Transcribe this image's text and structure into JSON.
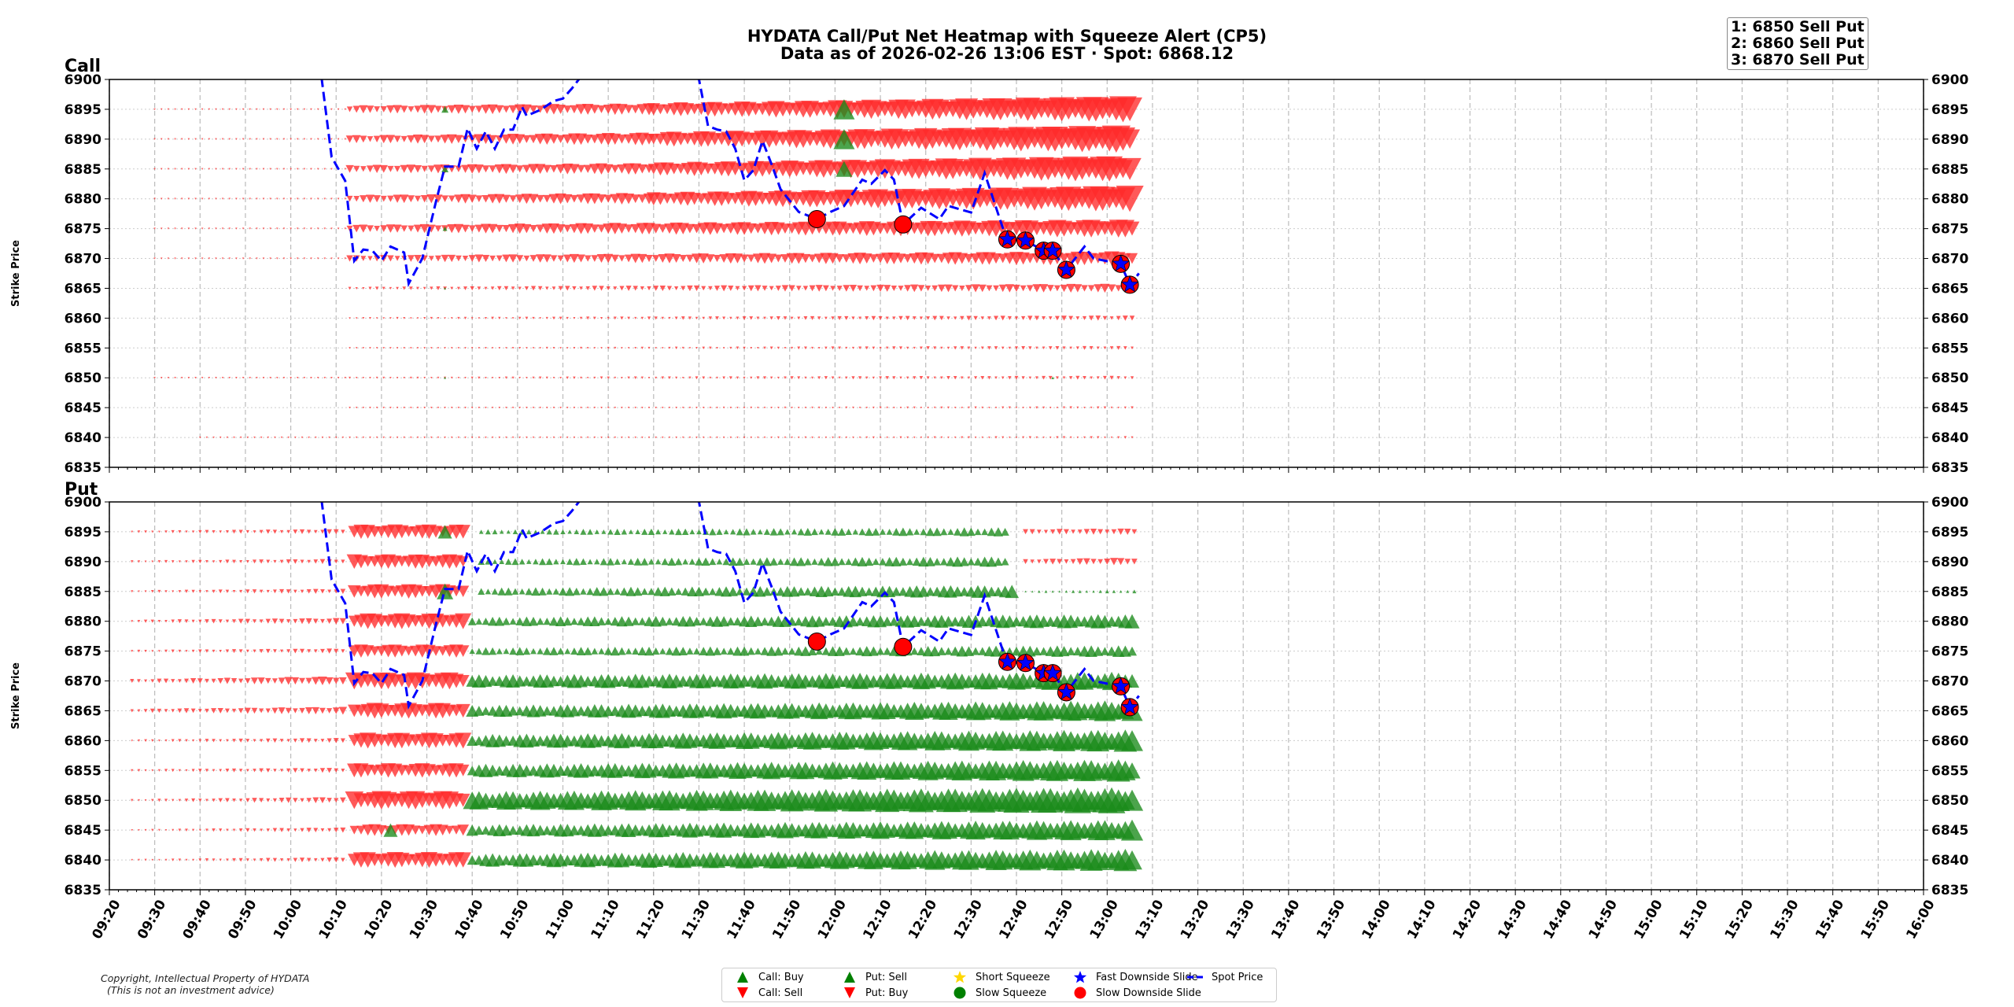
{
  "title": "HYDATA Call/Put Net Heatmap with Squeeze Alert (CP5)",
  "subtitle": "Data as of 2026-02-26 13:06 EST · Spot: 6868.12",
  "alerts_box": [
    "1: 6850 Sell Put",
    "2: 6860 Sell Put",
    "3: 6870 Sell Put"
  ],
  "copyright": [
    "Copyright, Intellectual Property of HYDATA",
    "(This is not an investment advice)"
  ],
  "colors": {
    "buy": "#1a8a1a",
    "sell": "#ff2a2a",
    "spot": "#0000ff",
    "short_squeeze": "#ffd700",
    "slow_squeeze": "#008000",
    "fast_slide": "#0000ff",
    "slow_slide": "#ff0000"
  },
  "legend": [
    {
      "label": "Call: Buy",
      "icon": "triangle-up",
      "color": "#008000"
    },
    {
      "label": "Call: Sell",
      "icon": "triangle-down",
      "color": "#ff0000"
    },
    {
      "label": "Put: Sell",
      "icon": "triangle-up",
      "color": "#008000"
    },
    {
      "label": "Put: Buy",
      "icon": "triangle-down",
      "color": "#ff0000"
    },
    {
      "label": "Short Squeeze",
      "icon": "star",
      "color": "#ffd700"
    },
    {
      "label": "Slow Squeeze",
      "icon": "circle",
      "color": "#008000"
    },
    {
      "label": "Fast Downside Slide",
      "icon": "star",
      "color": "#0000ff"
    },
    {
      "label": "Slow Downside Slide",
      "icon": "circle",
      "color": "#ff0000"
    },
    {
      "label": "Spot Price",
      "icon": "dashed-line",
      "color": "#0000ff"
    }
  ],
  "chart_data": {
    "type": "scatter",
    "ylabel": "Strike Price",
    "ylim": [
      6835,
      6900
    ],
    "xlim": [
      "09:20",
      "16:00"
    ],
    "yticks": [
      6900,
      6895,
      6890,
      6885,
      6880,
      6875,
      6870,
      6865,
      6860,
      6855,
      6850,
      6845,
      6840,
      6835
    ],
    "xticks": [
      "09:20",
      "09:30",
      "09:40",
      "09:50",
      "10:00",
      "10:10",
      "10:20",
      "10:30",
      "10:40",
      "10:50",
      "11:00",
      "11:10",
      "11:20",
      "11:30",
      "11:40",
      "11:50",
      "12:00",
      "12:10",
      "12:20",
      "12:30",
      "12:40",
      "12:50",
      "13:00",
      "13:10",
      "13:20",
      "13:30",
      "13:40",
      "13:50",
      "14:00",
      "14:10",
      "14:20",
      "14:30",
      "14:40",
      "14:50",
      "15:00",
      "15:10",
      "15:20",
      "15:30",
      "15:40",
      "15:50",
      "16:00"
    ],
    "grid": true,
    "legend_placement": "bottom-center",
    "panels": [
      {
        "name": "Call",
        "rows": [
          {
            "strike": 6895,
            "segments": [
              [
                "09:30",
                "10:12",
                "sell",
                0.04,
                0.06
              ],
              [
                "10:13",
                "11:20",
                "sell",
                0.3,
                0.45
              ],
              [
                "11:20",
                "13:06",
                "sell",
                0.5,
                1.0
              ]
            ]
          },
          {
            "strike": 6890,
            "segments": [
              [
                "09:30",
                "10:12",
                "sell",
                0.04,
                0.06
              ],
              [
                "10:13",
                "11:20",
                "sell",
                0.3,
                0.5
              ],
              [
                "11:20",
                "13:06",
                "sell",
                0.55,
                1.05
              ]
            ]
          },
          {
            "strike": 6885,
            "segments": [
              [
                "09:30",
                "10:12",
                "sell",
                0.04,
                0.06
              ],
              [
                "10:13",
                "11:20",
                "sell",
                0.3,
                0.45
              ],
              [
                "11:20",
                "13:06",
                "sell",
                0.5,
                1.0
              ]
            ]
          },
          {
            "strike": 6880,
            "segments": [
              [
                "09:30",
                "10:12",
                "sell",
                0.04,
                0.06
              ],
              [
                "10:13",
                "11:20",
                "sell",
                0.3,
                0.45
              ],
              [
                "11:20",
                "13:06",
                "sell",
                0.5,
                1.0
              ]
            ]
          },
          {
            "strike": 6875,
            "segments": [
              [
                "09:30",
                "10:12",
                "sell",
                0.04,
                0.05
              ],
              [
                "10:13",
                "13:06",
                "sell",
                0.3,
                0.7
              ]
            ]
          },
          {
            "strike": 6870,
            "segments": [
              [
                "09:30",
                "10:12",
                "sell",
                0.03,
                0.04
              ],
              [
                "10:13",
                "13:06",
                "sell",
                0.25,
                0.55
              ]
            ]
          },
          {
            "strike": 6865,
            "segments": [
              [
                "10:13",
                "13:06",
                "sell",
                0.12,
                0.35
              ]
            ]
          },
          {
            "strike": 6860,
            "segments": [
              [
                "10:13",
                "13:06",
                "sell",
                0.08,
                0.2
              ]
            ]
          },
          {
            "strike": 6855,
            "segments": [
              [
                "10:13",
                "13:06",
                "sell",
                0.06,
                0.15
              ]
            ]
          },
          {
            "strike": 6850,
            "segments": [
              [
                "09:30",
                "10:12",
                "sell",
                0.03,
                0.04
              ],
              [
                "10:13",
                "13:06",
                "sell",
                0.08,
                0.15
              ]
            ]
          },
          {
            "strike": 6845,
            "segments": [
              [
                "10:13",
                "13:06",
                "sell",
                0.05,
                0.1
              ]
            ]
          },
          {
            "strike": 6840,
            "segments": [
              [
                "09:40",
                "10:12",
                "sell",
                0.03,
                0.04
              ],
              [
                "10:13",
                "13:06",
                "sell",
                0.05,
                0.1
              ]
            ]
          }
        ],
        "points": [
          [
            "10:34",
            6895,
            "buy",
            0.3
          ],
          [
            "10:34",
            6885,
            "buy",
            0.3
          ],
          [
            "10:34",
            6875,
            "buy",
            0.2
          ],
          [
            "10:34",
            6865,
            "buy",
            0.1
          ],
          [
            "10:34",
            6850,
            "buy",
            0.1
          ],
          [
            "12:02",
            6895,
            "buy",
            0.9
          ],
          [
            "12:02",
            6890,
            "buy",
            0.9
          ],
          [
            "12:02",
            6885,
            "buy",
            0.7
          ],
          [
            "12:48",
            6850,
            "buy",
            0.12
          ]
        ]
      },
      {
        "name": "Put",
        "rows": [
          {
            "strike": 6895,
            "segments": [
              [
                "09:25",
                "10:12",
                "buy",
                0.1,
                0.2
              ],
              [
                "10:14",
                "10:38",
                "buy",
                0.55,
                0.55
              ],
              [
                "10:42",
                "12:38",
                "sell",
                0.2,
                0.35
              ],
              [
                "12:42",
                "13:06",
                "buy",
                0.2,
                0.25
              ]
            ]
          },
          {
            "strike": 6890,
            "segments": [
              [
                "09:25",
                "10:12",
                "buy",
                0.1,
                0.2
              ],
              [
                "10:14",
                "10:38",
                "buy",
                0.55,
                0.55
              ],
              [
                "10:42",
                "12:38",
                "sell",
                0.25,
                0.4
              ],
              [
                "12:42",
                "13:06",
                "buy",
                0.2,
                0.3
              ]
            ]
          },
          {
            "strike": 6885,
            "segments": [
              [
                "09:25",
                "10:12",
                "buy",
                0.1,
                0.2
              ],
              [
                "10:14",
                "10:38",
                "buy",
                0.55,
                0.55
              ],
              [
                "10:42",
                "12:40",
                "sell",
                0.3,
                0.5
              ],
              [
                "12:42",
                "13:06",
                "sell",
                0.1,
                0.15
              ]
            ]
          },
          {
            "strike": 6880,
            "segments": [
              [
                "09:25",
                "10:12",
                "buy",
                0.12,
                0.25
              ],
              [
                "10:14",
                "10:38",
                "buy",
                0.6,
                0.6
              ],
              [
                "10:40",
                "13:06",
                "sell",
                0.35,
                0.55
              ]
            ]
          },
          {
            "strike": 6875,
            "segments": [
              [
                "09:25",
                "10:12",
                "buy",
                0.1,
                0.2
              ],
              [
                "10:14",
                "10:38",
                "buy",
                0.5,
                0.5
              ],
              [
                "10:40",
                "13:06",
                "sell",
                0.3,
                0.45
              ]
            ]
          },
          {
            "strike": 6870,
            "segments": [
              [
                "09:25",
                "10:12",
                "buy",
                0.15,
                0.35
              ],
              [
                "10:14",
                "10:38",
                "buy",
                0.65,
                0.65
              ],
              [
                "10:40",
                "13:06",
                "sell",
                0.5,
                0.7
              ]
            ]
          },
          {
            "strike": 6865,
            "segments": [
              [
                "09:25",
                "10:12",
                "buy",
                0.15,
                0.3
              ],
              [
                "10:14",
                "10:38",
                "buy",
                0.6,
                0.6
              ],
              [
                "10:40",
                "13:06",
                "sell",
                0.45,
                0.8
              ]
            ]
          },
          {
            "strike": 6860,
            "segments": [
              [
                "09:25",
                "10:12",
                "buy",
                0.1,
                0.2
              ],
              [
                "10:14",
                "10:38",
                "buy",
                0.6,
                0.6
              ],
              [
                "10:40",
                "13:06",
                "sell",
                0.5,
                0.85
              ]
            ]
          },
          {
            "strike": 6855,
            "segments": [
              [
                "09:25",
                "10:12",
                "buy",
                0.1,
                0.2
              ],
              [
                "10:14",
                "10:38",
                "buy",
                0.55,
                0.55
              ],
              [
                "10:40",
                "13:06",
                "sell",
                0.5,
                0.85
              ]
            ]
          },
          {
            "strike": 6850,
            "segments": [
              [
                "09:25",
                "10:12",
                "buy",
                0.1,
                0.25
              ],
              [
                "10:14",
                "10:38",
                "buy",
                0.7,
                0.7
              ],
              [
                "10:40",
                "13:06",
                "sell",
                0.7,
                1.0
              ]
            ]
          },
          {
            "strike": 6845,
            "segments": [
              [
                "09:25",
                "10:12",
                "buy",
                0.08,
                0.2
              ],
              [
                "10:14",
                "10:38",
                "buy",
                0.45,
                0.45
              ],
              [
                "10:40",
                "13:06",
                "sell",
                0.45,
                0.8
              ]
            ]
          },
          {
            "strike": 6840,
            "segments": [
              [
                "09:25",
                "10:12",
                "buy",
                0.08,
                0.2
              ],
              [
                "10:14",
                "10:38",
                "buy",
                0.6,
                0.6
              ],
              [
                "10:40",
                "13:06",
                "sell",
                0.5,
                0.85
              ]
            ]
          }
        ],
        "points": [
          [
            "10:34",
            6895,
            "sell",
            0.6
          ],
          [
            "10:34",
            6885,
            "sell",
            0.7
          ],
          [
            "10:22",
            6845,
            "sell",
            0.6
          ]
        ]
      }
    ],
    "spot_price": [
      [
        "10:06",
        6905
      ],
      [
        "10:09",
        6887
      ],
      [
        "10:12",
        6883
      ],
      [
        "10:14",
        6869.6
      ],
      [
        "10:16",
        6871.5
      ],
      [
        "10:18",
        6871.3
      ],
      [
        "10:20",
        6869.6
      ],
      [
        "10:22",
        6872
      ],
      [
        "10:25",
        6871
      ],
      [
        "10:26",
        6865.8
      ],
      [
        "10:29",
        6870
      ],
      [
        "10:32",
        6879.5
      ],
      [
        "10:34",
        6885.4
      ],
      [
        "10:37",
        6885.4
      ],
      [
        "10:39",
        6891.8
      ],
      [
        "10:41",
        6888.4
      ],
      [
        "10:43",
        6891.3
      ],
      [
        "10:45",
        6888.4
      ],
      [
        "10:47",
        6891.6
      ],
      [
        "10:49",
        6891.6
      ],
      [
        "10:51",
        6895.4
      ],
      [
        "10:52",
        6893.9
      ],
      [
        "10:55",
        6894.9
      ],
      [
        "10:58",
        6896.4
      ],
      [
        "11:00",
        6896.8
      ],
      [
        "11:02",
        6898.5
      ],
      [
        "11:04",
        6900.5
      ],
      [
        "11:15",
        6903
      ],
      [
        "11:26",
        6902
      ],
      [
        "11:30",
        6900
      ],
      [
        "11:32",
        6892.2
      ],
      [
        "11:34",
        6891.6
      ],
      [
        "11:36",
        6891.3
      ],
      [
        "11:38",
        6888.4
      ],
      [
        "11:40",
        6883.1
      ],
      [
        "11:42",
        6884.8
      ],
      [
        "11:44",
        6889.7
      ],
      [
        "11:46",
        6885.8
      ],
      [
        "11:48",
        6881.6
      ],
      [
        "11:52",
        6877.8
      ],
      [
        "11:56",
        6876.6
      ],
      [
        "11:59",
        6877.8
      ],
      [
        "12:02",
        6878.8
      ],
      [
        "12:06",
        6883.2
      ],
      [
        "12:08",
        6882.5
      ],
      [
        "12:11",
        6884.8
      ],
      [
        "12:13",
        6883.2
      ],
      [
        "12:15",
        6875.7
      ],
      [
        "12:19",
        6878.5
      ],
      [
        "12:23",
        6876.6
      ],
      [
        "12:25",
        6878.8
      ],
      [
        "12:30",
        6877.7
      ],
      [
        "12:33",
        6884.3
      ],
      [
        "12:37",
        6875.1
      ],
      [
        "12:38",
        6873.2
      ],
      [
        "12:42",
        6873
      ],
      [
        "12:46",
        6871.3
      ],
      [
        "12:48",
        6871.3
      ],
      [
        "12:51",
        6868.1
      ],
      [
        "12:55",
        6872
      ],
      [
        "12:57",
        6870
      ],
      [
        "13:03",
        6869.1
      ],
      [
        "13:05",
        6865.6
      ],
      [
        "13:07",
        6867.5
      ]
    ],
    "signals": [
      {
        "type": "slow_downside_slide",
        "time": "11:56",
        "price": 6876.6
      },
      {
        "type": "slow_downside_slide",
        "time": "12:15",
        "price": 6875.7
      },
      {
        "type": "fast_downside_slide",
        "time": "12:38",
        "price": 6873.2
      },
      {
        "type": "fast_downside_slide",
        "time": "12:42",
        "price": 6873
      },
      {
        "type": "fast_downside_slide",
        "time": "12:46",
        "price": 6871.3
      },
      {
        "type": "fast_downside_slide",
        "time": "12:48",
        "price": 6871.3
      },
      {
        "type": "fast_downside_slide",
        "time": "12:51",
        "price": 6868.1
      },
      {
        "type": "fast_downside_slide",
        "time": "13:03",
        "price": 6869.1
      },
      {
        "type": "fast_downside_slide",
        "time": "13:05",
        "price": 6865.6
      }
    ]
  }
}
